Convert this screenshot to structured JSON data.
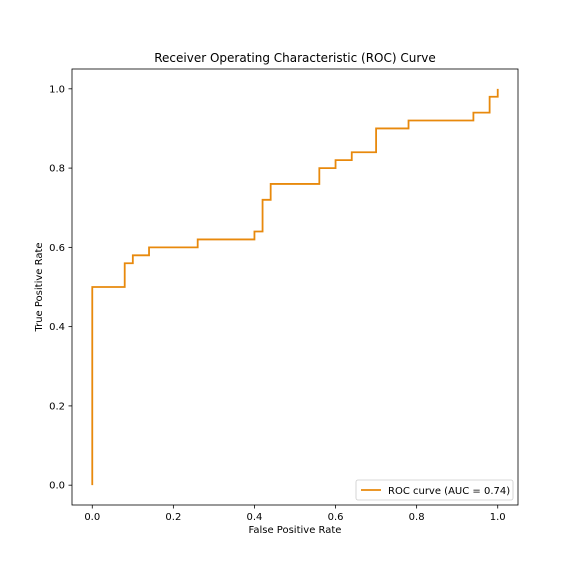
{
  "chart_data": {
    "type": "line",
    "title": "Receiver Operating Characteristic (ROC) Curve",
    "xlabel": "False Positive Rate",
    "ylabel": "True Positive Rate",
    "xlim": [
      -0.05,
      1.05
    ],
    "ylim": [
      -0.05,
      1.05
    ],
    "x_ticks": [
      0.0,
      0.2,
      0.4,
      0.6,
      0.8,
      1.0
    ],
    "y_ticks": [
      0.0,
      0.2,
      0.4,
      0.6,
      0.8,
      1.0
    ],
    "x_tick_labels": [
      "0.0",
      "0.2",
      "0.4",
      "0.6",
      "0.8",
      "1.0"
    ],
    "y_tick_labels": [
      "0.0",
      "0.2",
      "0.4",
      "0.6",
      "0.8",
      "1.0"
    ],
    "grid": false,
    "legend_position": "lower-right",
    "series": [
      {
        "name": "ROC curve (AUC = 0.74)",
        "color": "#e8890c",
        "x": [
          0.0,
          0.0,
          0.08,
          0.08,
          0.1,
          0.1,
          0.14,
          0.14,
          0.26,
          0.26,
          0.4,
          0.4,
          0.42,
          0.42,
          0.44,
          0.44,
          0.56,
          0.56,
          0.6,
          0.6,
          0.64,
          0.64,
          0.7,
          0.7,
          0.78,
          0.78,
          0.94,
          0.94,
          0.98,
          0.98,
          1.0,
          1.0
        ],
        "y": [
          0.0,
          0.5,
          0.5,
          0.56,
          0.56,
          0.58,
          0.58,
          0.6,
          0.6,
          0.62,
          0.62,
          0.64,
          0.64,
          0.72,
          0.72,
          0.76,
          0.76,
          0.8,
          0.8,
          0.82,
          0.82,
          0.84,
          0.84,
          0.9,
          0.9,
          0.92,
          0.92,
          0.94,
          0.94,
          0.98,
          0.98,
          1.0
        ]
      }
    ]
  }
}
